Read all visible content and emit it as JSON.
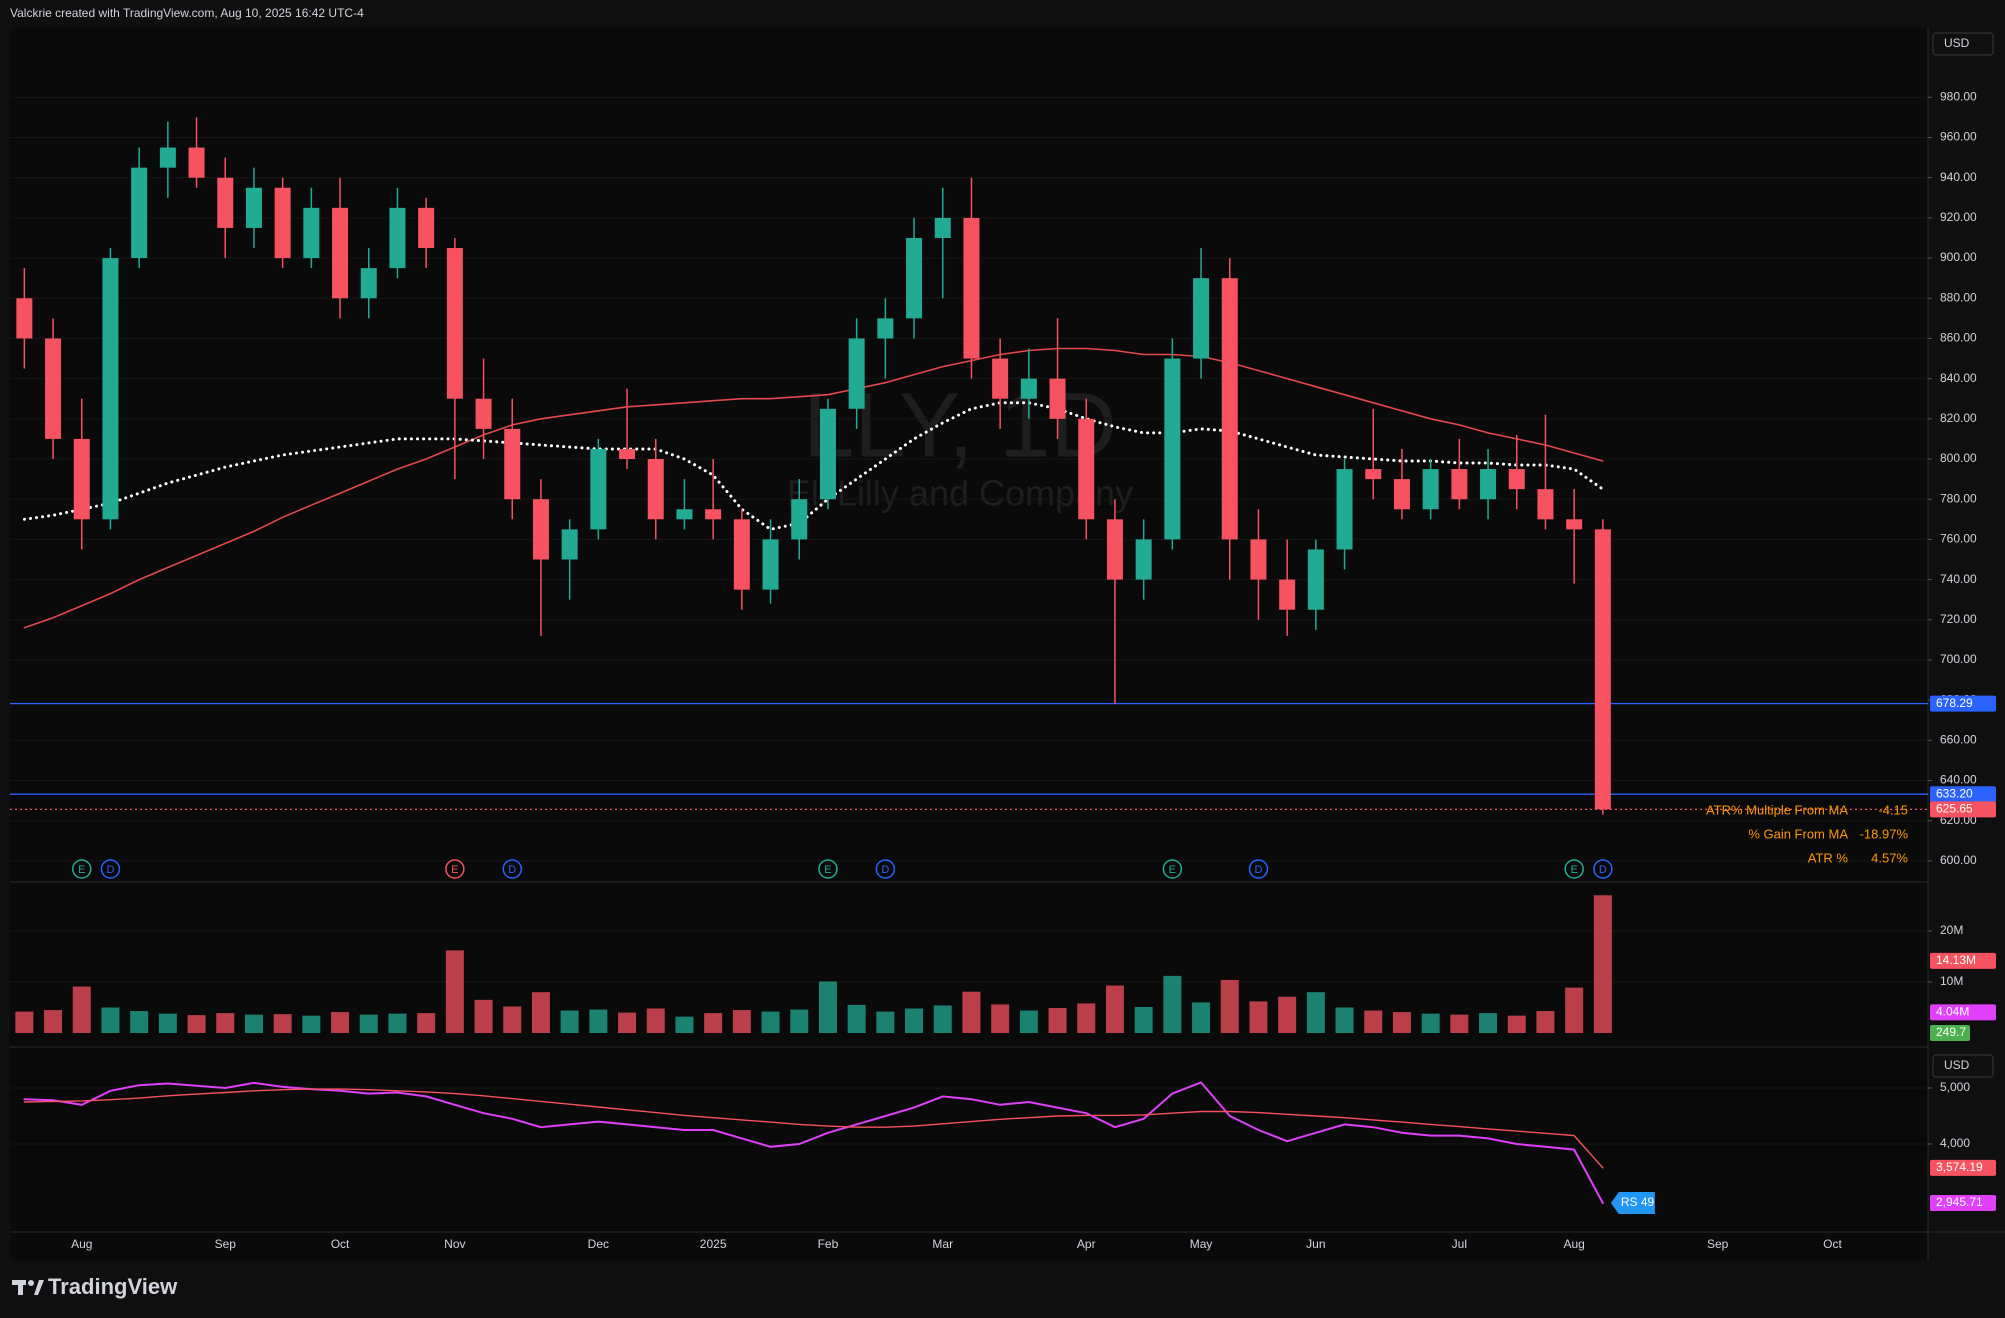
{
  "header": {
    "text": "Valckrie created with TradingView.com, Aug 10, 2025 16:42 UTC-4"
  },
  "footer": {
    "logo": "TradingView"
  },
  "chart_data": {
    "type": "candlestick",
    "watermark": [
      "LLY, 1D",
      "Eli Lilly and Company"
    ],
    "currency": "USD",
    "categories": [
      null,
      null,
      "Aug",
      null,
      null,
      null,
      null,
      "Sep",
      null,
      null,
      null,
      "Oct",
      null,
      null,
      null,
      "Nov",
      null,
      null,
      null,
      null,
      "Dec",
      null,
      null,
      null,
      "2025",
      null,
      null,
      null,
      "Feb",
      null,
      null,
      null,
      "Mar",
      null,
      null,
      null,
      null,
      "Apr",
      null,
      null,
      null,
      "May",
      null,
      null,
      null,
      "Jun",
      null,
      null,
      null,
      null,
      "Jul",
      null,
      null,
      null,
      "Aug",
      null,
      null,
      null,
      null,
      "Sep",
      null,
      null,
      null,
      "Oct"
    ],
    "candles": [
      [
        880,
        895,
        845,
        860
      ],
      [
        860,
        870,
        800,
        810
      ],
      [
        810,
        830,
        755,
        770
      ],
      [
        770,
        905,
        765,
        900
      ],
      [
        900,
        955,
        895,
        945
      ],
      [
        945,
        968,
        930,
        955
      ],
      [
        955,
        970,
        935,
        940
      ],
      [
        940,
        950,
        900,
        915
      ],
      [
        915,
        945,
        905,
        935
      ],
      [
        935,
        940,
        895,
        900
      ],
      [
        900,
        935,
        895,
        925
      ],
      [
        925,
        940,
        870,
        880
      ],
      [
        880,
        905,
        870,
        895
      ],
      [
        895,
        935,
        890,
        925
      ],
      [
        925,
        930,
        895,
        905
      ],
      [
        905,
        910,
        790,
        830
      ],
      [
        830,
        850,
        800,
        815
      ],
      [
        815,
        830,
        770,
        780
      ],
      [
        780,
        790,
        712,
        750
      ],
      [
        750,
        770,
        730,
        765
      ],
      [
        765,
        810,
        760,
        805
      ],
      [
        805,
        835,
        795,
        800
      ],
      [
        800,
        810,
        760,
        770
      ],
      [
        770,
        790,
        765,
        775
      ],
      [
        775,
        800,
        760,
        770
      ],
      [
        770,
        775,
        725,
        735
      ],
      [
        735,
        770,
        728,
        760
      ],
      [
        760,
        790,
        750,
        780
      ],
      [
        780,
        830,
        775,
        825
      ],
      [
        825,
        870,
        815,
        860
      ],
      [
        860,
        880,
        840,
        870
      ],
      [
        870,
        920,
        860,
        910
      ],
      [
        910,
        935,
        880,
        920
      ],
      [
        920,
        940,
        840,
        850
      ],
      [
        850,
        860,
        815,
        830
      ],
      [
        830,
        855,
        820,
        840
      ],
      [
        840,
        870,
        810,
        820
      ],
      [
        820,
        830,
        760,
        770
      ],
      [
        770,
        780,
        678,
        740
      ],
      [
        740,
        770,
        730,
        760
      ],
      [
        760,
        860,
        755,
        850
      ],
      [
        850,
        905,
        840,
        890
      ],
      [
        890,
        900,
        740,
        760
      ],
      [
        760,
        775,
        720,
        740
      ],
      [
        740,
        760,
        712,
        725
      ],
      [
        725,
        760,
        715,
        755
      ],
      [
        755,
        800,
        745,
        795
      ],
      [
        795,
        825,
        780,
        790
      ],
      [
        790,
        805,
        770,
        775
      ],
      [
        775,
        800,
        770,
        795
      ],
      [
        795,
        810,
        775,
        780
      ],
      [
        780,
        805,
        770,
        795
      ],
      [
        795,
        812,
        775,
        785
      ],
      [
        785,
        822,
        765,
        770
      ],
      [
        770,
        785,
        738,
        765
      ],
      [
        765,
        770,
        623,
        625.65
      ],
      null,
      null,
      null,
      null,
      null,
      null,
      null,
      null
    ],
    "up_color": "#22ab94",
    "down_color": "#f7525f",
    "overlays": [
      {
        "color": "#e5484d",
        "style": "solid",
        "values": [
          716,
          721,
          727,
          733,
          740,
          746,
          752,
          758,
          764,
          771,
          777,
          783,
          789,
          795,
          800,
          806,
          812,
          817,
          820,
          822,
          824,
          826,
          827,
          828,
          829,
          830,
          830,
          831,
          832,
          835,
          838,
          842,
          846,
          849,
          852,
          854,
          855,
          855,
          854,
          852,
          852,
          851,
          848,
          844,
          840,
          836,
          832,
          828,
          824,
          820,
          817,
          813,
          810,
          807,
          803,
          799,
          null,
          null,
          null,
          null,
          null,
          null,
          null,
          null
        ]
      },
      {
        "color": "#ffffff",
        "style": "dotted",
        "values": [
          770,
          772,
          775,
          778,
          783,
          788,
          792,
          796,
          799,
          802,
          804,
          806,
          808,
          810,
          810,
          810,
          809,
          808,
          807,
          806,
          805,
          805,
          805,
          800,
          792,
          775,
          765,
          768,
          780,
          790,
          800,
          810,
          818,
          825,
          828,
          828,
          825,
          820,
          816,
          813,
          813,
          815,
          814,
          810,
          806,
          802,
          801,
          800,
          799,
          799,
          798,
          798,
          797,
          797,
          795,
          785,
          null,
          null,
          null,
          null,
          null,
          null,
          null,
          null
        ]
      }
    ],
    "ylim": [
      589.5,
      1014.5
    ],
    "yticks": [
      {
        "value": 600,
        "label": "600.00"
      },
      {
        "value": 620,
        "label": "620.00"
      },
      {
        "value": 640,
        "label": "640.00"
      },
      {
        "value": 660,
        "label": "660.00"
      },
      {
        "value": 680,
        "label": "680.00"
      },
      {
        "value": 700,
        "label": "700.00"
      },
      {
        "value": 720,
        "label": "720.00"
      },
      {
        "value": 740,
        "label": "740.00"
      },
      {
        "value": 760,
        "label": "760.00"
      },
      {
        "value": 780,
        "label": "780.00"
      },
      {
        "value": 800,
        "label": "800.00"
      },
      {
        "value": 820,
        "label": "820.00"
      },
      {
        "value": 840,
        "label": "840.00"
      },
      {
        "value": 860,
        "label": "860.00"
      },
      {
        "value": 880,
        "label": "880.00"
      },
      {
        "value": 900,
        "label": "900.00"
      },
      {
        "value": 920,
        "label": "920.00"
      },
      {
        "value": 940,
        "label": "940.00"
      },
      {
        "value": 960,
        "label": "960.00"
      },
      {
        "value": 980,
        "label": "980.00"
      }
    ],
    "hlines": [
      {
        "value": 678.29,
        "color": "#2962ff",
        "style": "solid"
      },
      {
        "value": 633.2,
        "label": "633.20",
        "color": "#2962ff",
        "style": "solid"
      },
      {
        "value": 625.65,
        "color": "#f7525f",
        "style": "dotted"
      }
    ],
    "events": [
      null,
      null,
      {
        "label": "E",
        "color": "#22ab94"
      },
      {
        "label": "D",
        "color": "#2962ff"
      },
      null,
      null,
      null,
      null,
      null,
      null,
      null,
      null,
      null,
      null,
      null,
      {
        "label": "E",
        "color": "#f7525f"
      },
      null,
      {
        "label": "D",
        "color": "#2962ff"
      },
      null,
      null,
      null,
      null,
      null,
      null,
      null,
      null,
      null,
      null,
      {
        "label": "E",
        "color": "#22ab94"
      },
      null,
      {
        "label": "D",
        "color": "#2962ff"
      },
      null,
      null,
      null,
      null,
      null,
      null,
      null,
      null,
      null,
      {
        "label": "E",
        "color": "#22ab94"
      },
      null,
      null,
      {
        "label": "D",
        "color": "#2962ff"
      },
      null,
      null,
      null,
      null,
      null,
      null,
      null,
      null,
      null,
      null,
      {
        "label": "E",
        "color": "#22ab94"
      },
      {
        "label": "D",
        "color": "#2962ff"
      },
      null,
      null,
      null,
      null,
      null,
      null,
      null,
      null
    ],
    "stats": [
      {
        "label": "ATR% Multiple From MA",
        "value": "-4.15"
      },
      {
        "label": "% Gain From MA",
        "value": "-18.97%"
      },
      {
        "label": "ATR %",
        "value": "4.57%"
      }
    ],
    "volume": {
      "values": [
        4.2,
        4.5,
        9.1,
        5.0,
        4.3,
        3.8,
        3.5,
        3.9,
        3.6,
        3.7,
        3.4,
        4.1,
        3.6,
        3.8,
        3.9,
        16.2,
        6.5,
        5.2,
        8.0,
        4.4,
        4.6,
        4.0,
        4.8,
        3.2,
        3.9,
        4.5,
        4.2,
        4.6,
        10.1,
        5.5,
        4.2,
        4.8,
        5.4,
        8.1,
        5.6,
        4.4,
        4.9,
        5.8,
        9.3,
        5.1,
        11.2,
        6.0,
        10.4,
        6.2,
        7.1,
        8.0,
        5.0,
        4.4,
        4.1,
        3.8,
        3.6,
        3.9,
        3.4,
        4.3,
        8.9,
        27.0,
        null,
        null,
        null,
        null,
        null,
        null,
        null,
        null
      ],
      "ylim": [
        0,
        29.6
      ],
      "yticks": [
        {
          "value": 10,
          "label": "10M"
        },
        {
          "value": 20,
          "label": "20M"
        }
      ],
      "badges": [
        {
          "value": 14.13,
          "label": "14.13M",
          "color": "#f7525f"
        },
        {
          "value": 4.04,
          "label": "4.04M",
          "color": "#e040fb"
        }
      ],
      "extra_badge": {
        "label": "249.7",
        "color": "#4caf50"
      }
    },
    "relative_strength": {
      "currency": "USD",
      "series": [
        {
          "color": "#e040fb",
          "values": [
            4800,
            4780,
            4700,
            4950,
            5050,
            5080,
            5040,
            5000,
            5090,
            5020,
            4980,
            4950,
            4900,
            4920,
            4850,
            4700,
            4550,
            4450,
            4300,
            4350,
            4400,
            4350,
            4300,
            4250,
            4250,
            4100,
            3950,
            4000,
            4200,
            4350,
            4500,
            4650,
            4850,
            4800,
            4700,
            4750,
            4650,
            4550,
            4300,
            4450,
            4900,
            5100,
            4500,
            4250,
            4050,
            4200,
            4350,
            4300,
            4200,
            4150,
            4150,
            4100,
            4000,
            3950,
            3900,
            2945.71,
            null,
            null,
            null,
            null,
            null,
            null,
            null,
            null
          ]
        },
        {
          "color": "#f7525f",
          "values": [
            4750,
            4760,
            4770,
            4790,
            4820,
            4860,
            4890,
            4920,
            4950,
            4970,
            4980,
            4980,
            4970,
            4950,
            4930,
            4900,
            4860,
            4810,
            4760,
            4710,
            4660,
            4610,
            4560,
            4510,
            4470,
            4430,
            4390,
            4350,
            4320,
            4300,
            4300,
            4320,
            4360,
            4400,
            4440,
            4470,
            4500,
            4510,
            4510,
            4520,
            4550,
            4580,
            4580,
            4560,
            4530,
            4500,
            4470,
            4430,
            4390,
            4350,
            4310,
            4270,
            4230,
            4190,
            4150,
            3574.19,
            null,
            null,
            null,
            null,
            null,
            null,
            null,
            null
          ]
        }
      ],
      "ylim": [
        2464,
        5696
      ],
      "yticks": [
        {
          "value": 4000,
          "label": "4,000"
        },
        {
          "value": 5000,
          "label": "5,000"
        }
      ],
      "badges": [
        {
          "value": 3574.19,
          "label": "3,574.19",
          "color": "#f7525f"
        },
        {
          "value": 2945.71,
          "label": "2,945.71",
          "color": "#e040fb"
        }
      ],
      "rating_label": "RS 49"
    }
  }
}
